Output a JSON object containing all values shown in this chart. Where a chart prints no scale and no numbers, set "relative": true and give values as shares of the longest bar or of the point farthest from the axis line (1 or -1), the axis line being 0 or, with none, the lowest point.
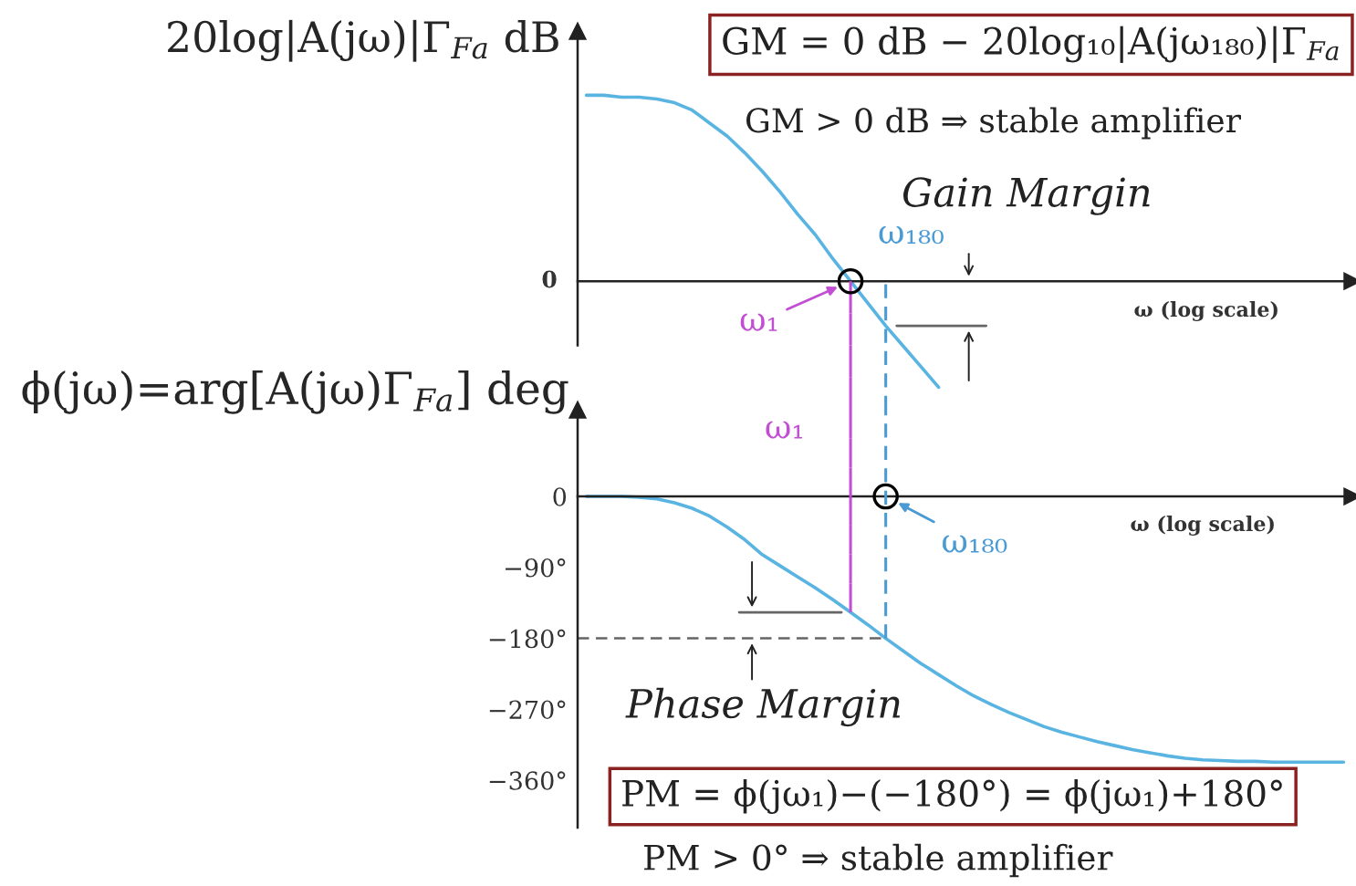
{
  "chart_data": [
    {
      "type": "line",
      "relative": true,
      "tick_labels": false,
      "ylabel": "20log|A(jω)|Γ$_{Fa}$ dB",
      "xlabel": "ω (log scale)",
      "categories": [
        null,
        null,
        null,
        null,
        null,
        null,
        null,
        null,
        null,
        null,
        null,
        null,
        null,
        null,
        null,
        null,
        null,
        null,
        null,
        null,
        null,
        null,
        null,
        null,
        null,
        null,
        null,
        null,
        null,
        null,
        null,
        null,
        null,
        null,
        null,
        null,
        null,
        null,
        null,
        null,
        null,
        null,
        null,
        null
      ],
      "series": [
        {
          "color": "#5ab4e2",
          "values": [
            1.0,
            1.0,
            0.99,
            0.99,
            0.98,
            0.96,
            0.92,
            0.85,
            0.78,
            0.69,
            0.59,
            0.48,
            0.36,
            0.25,
            0.12,
            0,
            -0.12,
            -0.24,
            -0.35,
            -0.46,
            -0.57,
            null,
            null,
            null,
            null,
            null,
            null,
            null,
            null,
            null,
            null,
            null,
            null,
            null,
            null,
            null,
            null,
            null,
            null,
            null,
            null,
            null,
            null,
            null
          ]
        }
      ],
      "annotations": [
        "0",
        "GM = 0 dB − 20log₁₀|A(jω₁₈₀)|Γ$_{Fa}$",
        "GM > 0 dB ⇒ stable amplifier",
        "Gain Margin",
        "ω₁",
        "ω₁₈₀"
      ]
    },
    {
      "type": "line",
      "tick_labels": "y",
      "ylabel": "ϕ(jω)=arg[A(jω)Γ$_{Fa}$] deg",
      "xlabel": "ω (log scale)",
      "categories": [
        null,
        null,
        null,
        null,
        null,
        null,
        null,
        null,
        null,
        null,
        null,
        null,
        null,
        null,
        null,
        null,
        null,
        null,
        null,
        null,
        null,
        null,
        null,
        null,
        null,
        null,
        null,
        null,
        null,
        null,
        null,
        null,
        null,
        null,
        null,
        null,
        null,
        null,
        null,
        null,
        null,
        null,
        null,
        null
      ],
      "ylim": [
        -420,
        110
      ],
      "yticks": [
        0,
        {
          "value": -90,
          "label": "−90°"
        },
        {
          "value": -180,
          "label": "−180°"
        },
        {
          "value": -270,
          "label": "−270°"
        },
        {
          "value": -360,
          "label": "−360°"
        }
      ],
      "series": [
        {
          "color": "#5ab4e2",
          "values": [
            0,
            0,
            0,
            -1,
            -3,
            -8,
            -15,
            -25,
            -39,
            -55,
            -74,
            -88,
            -102,
            -116,
            -131,
            -147,
            -163,
            -180,
            -196,
            -212,
            -226,
            -240,
            -253,
            -264,
            -274,
            -283,
            -292,
            -299,
            -305,
            -311,
            -316,
            -321,
            -325,
            -329,
            -332,
            -334,
            -335,
            -336,
            -336,
            -337,
            -337,
            -337,
            -337,
            -337
          ]
        }
      ],
      "ref_lines": [
        {
          "axis": "y",
          "value": -180,
          "color": "#666666",
          "line_style": "dashed"
        }
      ],
      "annotations": [
        "Phase Margin",
        "PM = ϕ(jω₁)−(−180°) = ϕ(jω₁)+180°",
        "PM > 0° ⇒ stable amplifier",
        "ω₁",
        "ω₁₈₀"
      ]
    }
  ]
}
